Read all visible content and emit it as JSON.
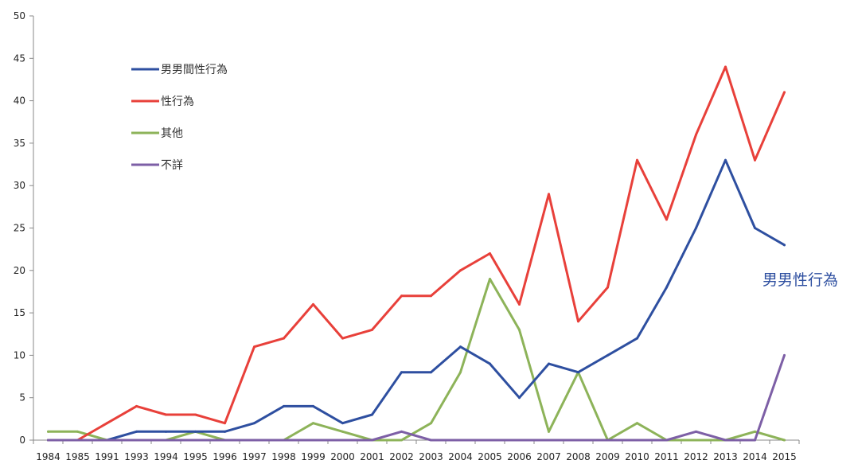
{
  "chart_data": {
    "type": "line",
    "title": "",
    "xlabel": "",
    "ylabel": "",
    "ylim": [
      0,
      50
    ],
    "yticks": [
      0,
      5,
      10,
      15,
      20,
      25,
      30,
      35,
      40,
      45,
      50
    ],
    "grid": false,
    "legend_position": "top-left",
    "categories": [
      "1984",
      "1985",
      "1991",
      "1993",
      "1994",
      "1995",
      "1996",
      "1997",
      "1998",
      "1999",
      "2000",
      "2001",
      "2002",
      "2003",
      "2004",
      "2005",
      "2006",
      "2007",
      "2008",
      "2009",
      "2010",
      "2011",
      "2012",
      "2013",
      "2014",
      "2015"
    ],
    "series": [
      {
        "name": "男男間性行為",
        "color": "#2e4fa0",
        "values": [
          0,
          0,
          0,
          1,
          1,
          1,
          1,
          2,
          4,
          4,
          2,
          3,
          8,
          8,
          11,
          9,
          5,
          9,
          8,
          10,
          12,
          18,
          25,
          33,
          25,
          23
        ]
      },
      {
        "name": "性行為",
        "color": "#e8403a",
        "values": [
          0,
          0,
          2,
          4,
          3,
          3,
          2,
          11,
          12,
          16,
          12,
          13,
          17,
          17,
          20,
          22,
          16,
          29,
          14,
          18,
          33,
          26,
          36,
          44,
          33,
          41
        ]
      },
      {
        "name": "其他",
        "color": "#8db359",
        "values": [
          1,
          1,
          0,
          0,
          0,
          1,
          0,
          0,
          0,
          2,
          1,
          0,
          0,
          2,
          8,
          19,
          13,
          1,
          8,
          0,
          2,
          0,
          0,
          0,
          1,
          0
        ]
      },
      {
        "name": "不詳",
        "color": "#7d5fa6",
        "values": [
          0,
          0,
          0,
          0,
          0,
          0,
          0,
          0,
          0,
          0,
          0,
          0,
          1,
          0,
          0,
          0,
          0,
          0,
          0,
          0,
          0,
          0,
          1,
          0,
          0,
          10
        ]
      }
    ],
    "annotations": [
      {
        "text": "男男性行為",
        "color": "#2e4fa0"
      }
    ],
    "axis_color": "#888888"
  }
}
